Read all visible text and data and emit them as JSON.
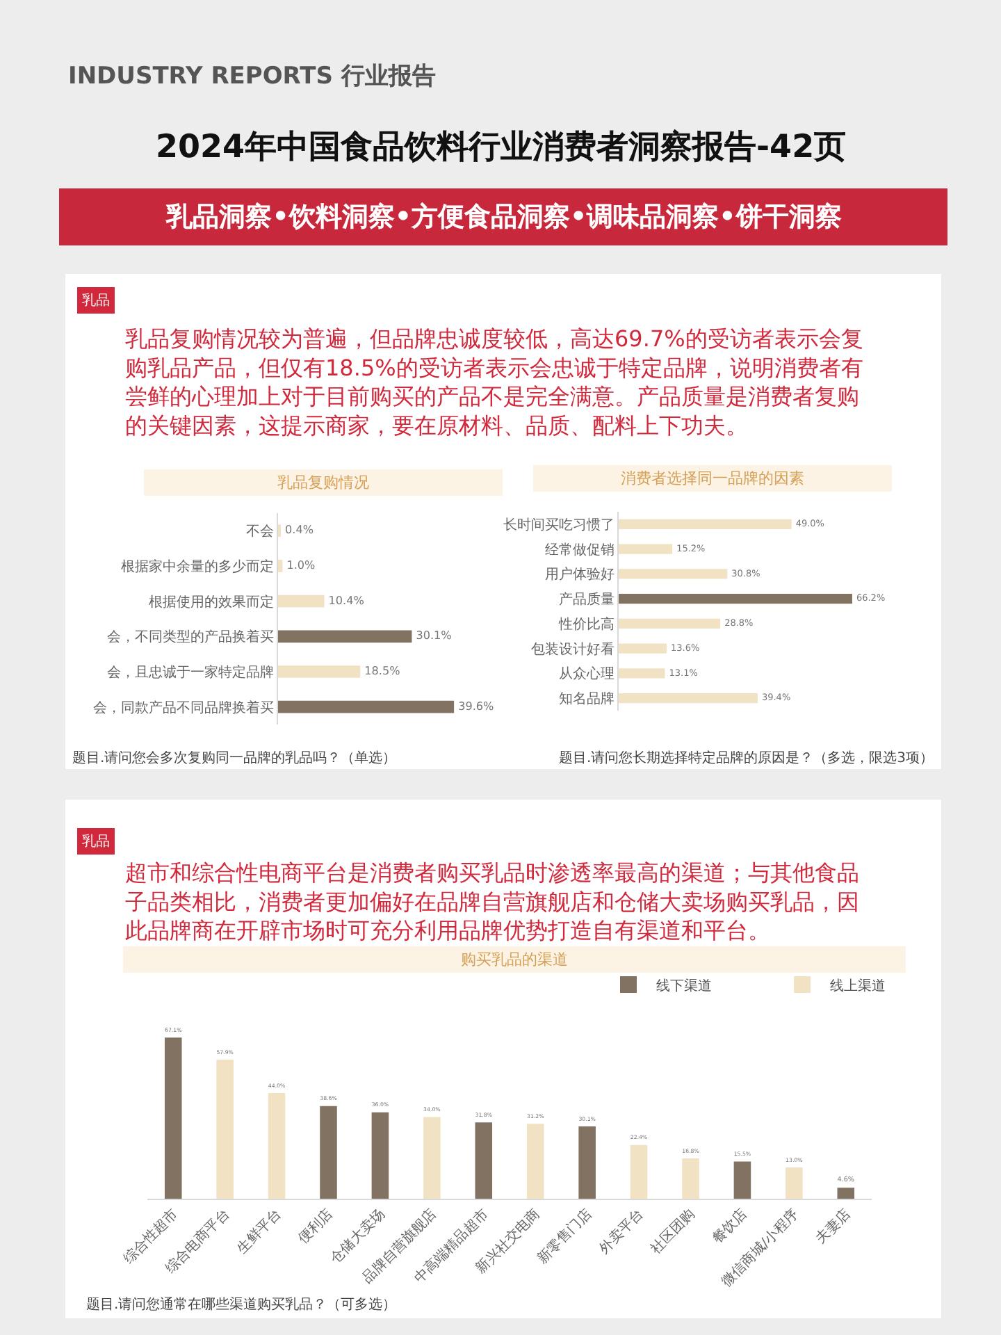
{
  "chart_data": [
    {
      "type": "other",
      "title": "2024年中国食品饮料行业消费者洞察报告-42页",
      "subtitle": "乳品洞察•饮料洞察•方便食品洞察•调味品洞察•饼干洞察",
      "annotations": [
        "INDUSTRY REPORTS 行业报告"
      ]
    },
    {
      "type": "other",
      "title": "乳品",
      "subtitle": "乳品复购情况较为普遍，但品牌忠诚度较低，高达69.7%的受访者表示会复购乳品产品，但仅有18.5%的受访者表示会忠诚于特定品牌，说明消费者有尝鲜的心理加上对于目前购买的产品不是完全满意。产品质量是消费者复购的关键因素，这提示商家，要在原材料、品质、配料上下功夫。"
    },
    {
      "type": "bar",
      "orientation": "horizontal",
      "title": "乳品复购情况",
      "categories": [
        "不会",
        "根据家中余量的多少而定",
        "根据使用的效果而定",
        "会，不同类型的产品换着买",
        "会，且忠诚于一家特定品牌",
        "会，同款产品不同品牌换着买"
      ],
      "values": [
        0.4,
        1.0,
        10.4,
        30.1,
        18.5,
        39.6
      ],
      "value_labels": [
        "0.4%",
        "1.0%",
        "10.4%",
        "30.1%",
        "18.5%",
        "39.6%"
      ],
      "colors": [
        "#f2e2c4",
        "#f2e2c4",
        "#f2e2c4",
        "#827262",
        "#f2e2c4",
        "#827262"
      ],
      "annotations": [
        "题目.请问您会多次复购同一品牌的乳品吗？（单选）"
      ]
    },
    {
      "type": "bar",
      "orientation": "horizontal",
      "title": "消费者选择同一品牌的因素",
      "categories": [
        "长时间买吃习惯了",
        "经常做促销",
        "用户体验好",
        "产品质量",
        "性价比高",
        "包装设计好看",
        "从众心理",
        "知名品牌"
      ],
      "values": [
        49.0,
        15.2,
        30.8,
        66.2,
        28.8,
        13.6,
        13.1,
        39.4
      ],
      "value_labels": [
        "49.0%",
        "15.2%",
        "30.8%",
        "66.2%",
        "28.8%",
        "13.6%",
        "13.1%",
        "39.4%"
      ],
      "colors": [
        "#f2e2c4",
        "#f2e2c4",
        "#f2e2c4",
        "#827262",
        "#f2e2c4",
        "#f2e2c4",
        "#f2e2c4",
        "#f2e2c4"
      ],
      "annotations": [
        "题目.请问您长期选择特定品牌的原因是？（多选，限选3项）"
      ]
    },
    {
      "type": "other",
      "title": "乳品",
      "subtitle": "超市和综合性电商平台是消费者购买乳品时渗透率最高的渠道；与其他食品子品类相比，消费者更加偏好在品牌自营旗舰店和仓储大卖场购买乳品，因此品牌商在开辟市场时可充分利用品牌优势打造自有渠道和平台。"
    },
    {
      "type": "bar",
      "title": "购买乳品的渠道",
      "categories": [
        "综合性超市",
        "综合电商平台",
        "生鲜平台",
        "便利店",
        "仓储大卖场",
        "品牌自营旗舰店",
        "中高端精品超市",
        "新兴社交电商",
        "新零售门店",
        "外卖平台",
        "社区团购",
        "餐饮店",
        "微信商城/小程序",
        "夫妻店"
      ],
      "series": [
        {
          "name": "线下渠道",
          "color": "#827262",
          "values": [
            67.1,
            null,
            null,
            38.6,
            36.0,
            null,
            31.8,
            null,
            30.1,
            null,
            null,
            15.5,
            null,
            4.6
          ],
          "value_labels": [
            "67.1%",
            null,
            null,
            "38.6%",
            "36.0%",
            null,
            "31.8%",
            null,
            "30.1%",
            null,
            null,
            "15.5%",
            null,
            "4.6%"
          ]
        },
        {
          "name": "线上渠道",
          "color": "#f2e2c4",
          "values": [
            null,
            57.9,
            44.0,
            null,
            null,
            34.0,
            null,
            31.2,
            null,
            22.4,
            16.8,
            null,
            13.0,
            null
          ],
          "value_labels": [
            null,
            "57.9%",
            "44.0%",
            null,
            null,
            "34.0%",
            null,
            "31.2%",
            null,
            "22.4%",
            "16.8%",
            null,
            "13.0%",
            null
          ]
        }
      ],
      "legend": "top right",
      "annotations": [
        "题目.请问您通常在哪些渠道购买乳品？（可多选）"
      ]
    }
  ]
}
